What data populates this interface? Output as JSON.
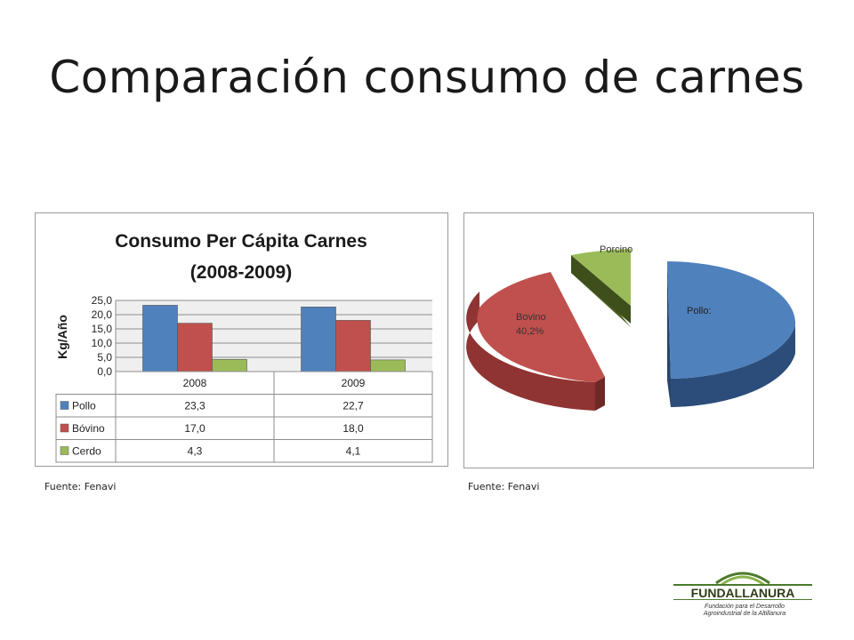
{
  "slide": {
    "title": "Comparación consumo de carnes",
    "source_left": "Fuente: Fenavi",
    "source_right": "Fuente: Fenavi"
  },
  "logo": {
    "name": "FUNDALLANURA",
    "tagline1": "Fundación para el Desarrollo",
    "tagline2": "Agroindustrial de la Altillanura"
  },
  "chart_data": [
    {
      "type": "bar",
      "title": "Consumo Per Cápita Carnes",
      "subtitle": "(2008-2009)",
      "ylabel": "Kg/Año",
      "xlabel": "",
      "categories": [
        "2008",
        "2009"
      ],
      "series": [
        {
          "name": "Pollo",
          "values": [
            23.3,
            22.7
          ],
          "labels": [
            "23,3",
            "22,7"
          ],
          "color": "#4f81bd"
        },
        {
          "name": "Bóvino",
          "values": [
            17.0,
            18.0
          ],
          "labels": [
            "17,0",
            "18,0"
          ],
          "color": "#c0504d"
        },
        {
          "name": "Cerdo",
          "values": [
            4.3,
            4.1
          ],
          "labels": [
            "4,3",
            "4,1"
          ],
          "color": "#9bbb59"
        }
      ],
      "ylim": [
        0,
        25
      ],
      "yticks": [
        0,
        5,
        10,
        15,
        20,
        25
      ],
      "ytick_labels": [
        "0,0",
        "5,0",
        "10,0",
        "15,0",
        "20,0",
        "25,0"
      ],
      "grid": true,
      "legend": "data-table-below"
    },
    {
      "type": "pie",
      "style": "3d-exploded",
      "slices": [
        {
          "name": "Pollo:",
          "value": 51.3,
          "label": "Pollo:",
          "color": "#4f81bd"
        },
        {
          "name": "Bovino",
          "value": 40.2,
          "label": "Bovino",
          "pct_label": "40,2%",
          "color": "#c0504d"
        },
        {
          "name": "Porcino",
          "value": 8.5,
          "label": "Porcino",
          "color": "#9bbb59"
        }
      ]
    }
  ]
}
